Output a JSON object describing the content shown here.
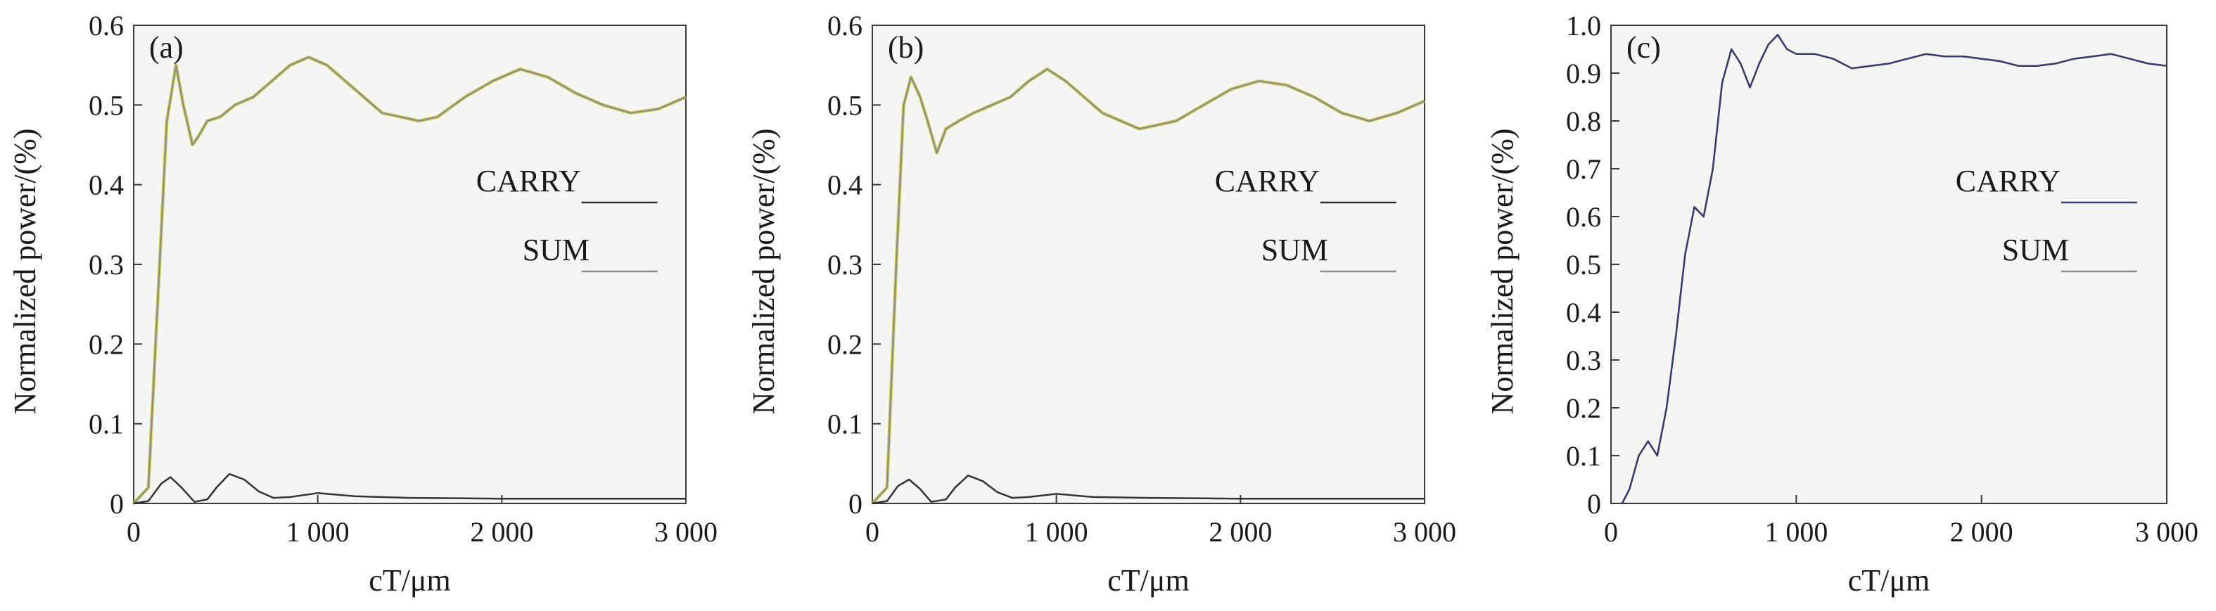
{
  "chart_data": [
    {
      "type": "line",
      "panel_label": "(a)",
      "xlabel": "cT/μm",
      "ylabel": "Normalized power/(%)",
      "xlim": [
        0,
        3000
      ],
      "ylim": [
        0,
        0.6
      ],
      "x_ticks": [
        0,
        1000,
        2000,
        3000
      ],
      "x_tick_labels": [
        "0",
        "1 000",
        "2 000",
        "3 000"
      ],
      "y_ticks": [
        0,
        0.1,
        0.2,
        0.3,
        0.4,
        0.5,
        0.6
      ],
      "y_tick_labels": [
        "0",
        "0.1",
        "0.2",
        "0.3",
        "0.4",
        "0.5",
        "0.6"
      ],
      "legend_placement": "center-right",
      "series": [
        {
          "name": "CARRY",
          "color": "#333333",
          "x": [
            0,
            80,
            150,
            200,
            260,
            330,
            400,
            450,
            520,
            600,
            680,
            760,
            850,
            1000,
            1200,
            1500,
            2000,
            2500,
            3000
          ],
          "y": [
            0,
            0.003,
            0.025,
            0.033,
            0.02,
            0.002,
            0.005,
            0.02,
            0.037,
            0.03,
            0.015,
            0.007,
            0.008,
            0.013,
            0.009,
            0.007,
            0.006,
            0.006,
            0.006
          ]
        },
        {
          "name": "SUM",
          "color": "#8e8e8e",
          "highlight_color": "#c8cc22",
          "x": [
            0,
            80,
            130,
            180,
            230,
            270,
            320,
            350,
            400,
            470,
            550,
            650,
            750,
            850,
            950,
            1050,
            1150,
            1250,
            1350,
            1450,
            1550,
            1650,
            1800,
            1950,
            2100,
            2250,
            2400,
            2550,
            2700,
            2850,
            3000
          ],
          "y": [
            0,
            0.02,
            0.25,
            0.48,
            0.55,
            0.5,
            0.45,
            0.46,
            0.48,
            0.485,
            0.5,
            0.51,
            0.53,
            0.55,
            0.56,
            0.55,
            0.53,
            0.51,
            0.49,
            0.485,
            0.48,
            0.485,
            0.51,
            0.53,
            0.545,
            0.535,
            0.515,
            0.5,
            0.49,
            0.495,
            0.51
          ]
        }
      ]
    },
    {
      "type": "line",
      "panel_label": "(b)",
      "xlabel": "cT/μm",
      "ylabel": "Normalized power/(%)",
      "xlim": [
        0,
        3000
      ],
      "ylim": [
        0,
        0.6
      ],
      "x_ticks": [
        0,
        1000,
        2000,
        3000
      ],
      "x_tick_labels": [
        "0",
        "1 000",
        "2 000",
        "3 000"
      ],
      "y_ticks": [
        0,
        0.1,
        0.2,
        0.3,
        0.4,
        0.5,
        0.6
      ],
      "y_tick_labels": [
        "0",
        "0.1",
        "0.2",
        "0.3",
        "0.4",
        "0.5",
        "0.6"
      ],
      "legend_placement": "center-right",
      "series": [
        {
          "name": "CARRY",
          "color": "#333333",
          "x": [
            0,
            80,
            140,
            200,
            260,
            320,
            400,
            450,
            520,
            600,
            680,
            760,
            850,
            1000,
            1200,
            1500,
            2000,
            2500,
            3000
          ],
          "y": [
            0,
            0.003,
            0.022,
            0.03,
            0.018,
            0.002,
            0.005,
            0.02,
            0.035,
            0.028,
            0.014,
            0.007,
            0.008,
            0.012,
            0.008,
            0.007,
            0.006,
            0.006,
            0.006
          ]
        },
        {
          "name": "SUM",
          "color": "#8e8e8e",
          "highlight_color": "#c8cc22",
          "x": [
            0,
            80,
            130,
            170,
            210,
            260,
            300,
            350,
            400,
            470,
            550,
            650,
            750,
            850,
            950,
            1050,
            1150,
            1250,
            1350,
            1450,
            1550,
            1650,
            1800,
            1950,
            2100,
            2250,
            2400,
            2550,
            2700,
            2850,
            3000
          ],
          "y": [
            0,
            0.02,
            0.3,
            0.5,
            0.535,
            0.51,
            0.48,
            0.44,
            0.47,
            0.48,
            0.49,
            0.5,
            0.51,
            0.53,
            0.545,
            0.53,
            0.51,
            0.49,
            0.48,
            0.47,
            0.475,
            0.48,
            0.5,
            0.52,
            0.53,
            0.525,
            0.51,
            0.49,
            0.48,
            0.49,
            0.505
          ]
        }
      ]
    },
    {
      "type": "line",
      "panel_label": "(c)",
      "xlabel": "cT/μm",
      "ylabel": "Normalized power/(%)",
      "xlim": [
        0,
        3000
      ],
      "ylim": [
        0,
        1.0
      ],
      "x_ticks": [
        0,
        1000,
        2000,
        3000
      ],
      "x_tick_labels": [
        "0",
        "1 000",
        "2 000",
        "3 000"
      ],
      "y_ticks": [
        0,
        0.1,
        0.2,
        0.3,
        0.4,
        0.5,
        0.6,
        0.7,
        0.8,
        0.9,
        1.0
      ],
      "y_tick_labels": [
        "0",
        "0.1",
        "0.2",
        "0.3",
        "0.4",
        "0.5",
        "0.6",
        "0.7",
        "0.8",
        "0.9",
        "1.0"
      ],
      "legend_placement": "center-right",
      "series": [
        {
          "name": "CARRY",
          "color": "#3a3a6e",
          "x": [
            60,
            100,
            150,
            200,
            250,
            300,
            350,
            400,
            450,
            500,
            550,
            600,
            650,
            700,
            750,
            800,
            850,
            900,
            950,
            1000,
            1100,
            1200,
            1300,
            1400,
            1500,
            1600,
            1700,
            1800,
            1900,
            2000,
            2100,
            2200,
            2300,
            2400,
            2500,
            2600,
            2700,
            2800,
            2900,
            3000
          ],
          "y": [
            0,
            0.03,
            0.1,
            0.13,
            0.1,
            0.2,
            0.35,
            0.52,
            0.62,
            0.6,
            0.7,
            0.88,
            0.95,
            0.92,
            0.87,
            0.92,
            0.96,
            0.98,
            0.95,
            0.94,
            0.94,
            0.93,
            0.91,
            0.915,
            0.92,
            0.93,
            0.94,
            0.935,
            0.935,
            0.93,
            0.925,
            0.915,
            0.915,
            0.92,
            0.93,
            0.935,
            0.94,
            0.93,
            0.92,
            0.915
          ]
        },
        {
          "name": "SUM",
          "color": "#8e8e8e",
          "x": [
            60,
            100,
            150,
            200,
            250,
            300,
            350,
            400,
            450,
            500,
            550,
            600,
            650,
            700,
            750,
            800,
            850,
            900,
            950,
            1000,
            1100,
            1200,
            1300,
            1400,
            1500,
            1600,
            1700,
            1800,
            1900,
            2000,
            2100,
            2200,
            2300,
            2400,
            2500,
            2600,
            2700,
            2800,
            2900,
            3000
          ],
          "y": [
            0,
            0.03,
            0.1,
            0.13,
            0.1,
            0.2,
            0.35,
            0.52,
            0.62,
            0.6,
            0.7,
            0.88,
            0.95,
            0.92,
            0.87,
            0.92,
            0.96,
            0.98,
            0.95,
            0.94,
            0.94,
            0.93,
            0.91,
            0.915,
            0.92,
            0.93,
            0.94,
            0.935,
            0.935,
            0.93,
            0.925,
            0.915,
            0.915,
            0.92,
            0.93,
            0.935,
            0.94,
            0.93,
            0.92,
            0.915
          ]
        }
      ]
    }
  ]
}
